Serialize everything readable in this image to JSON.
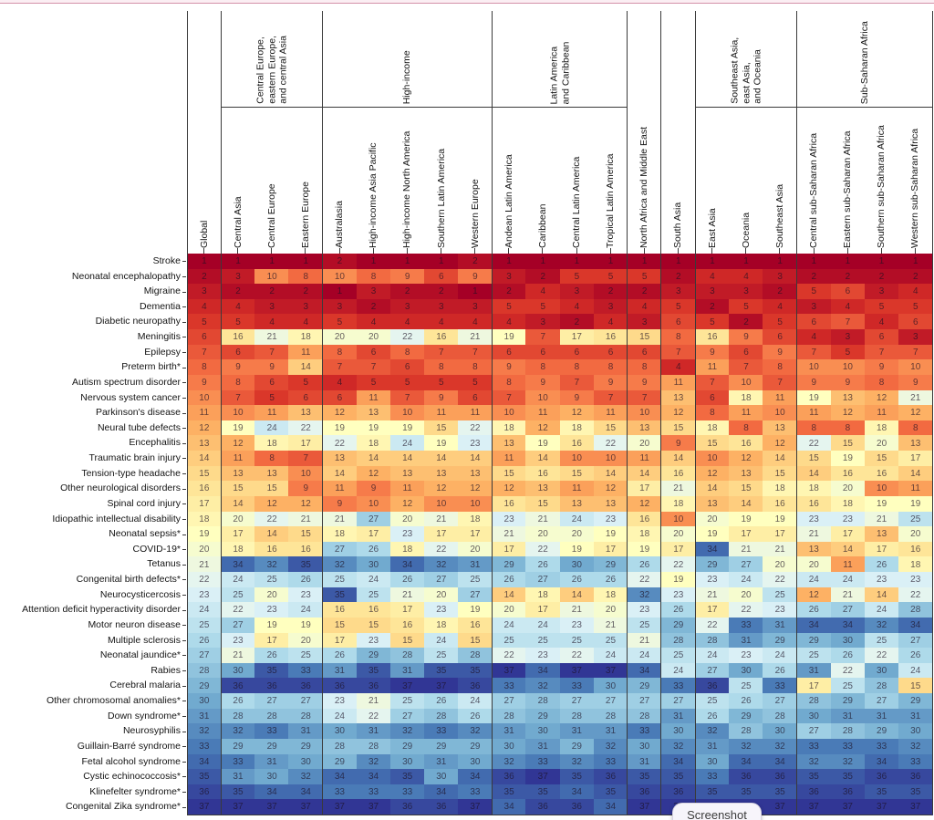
{
  "page": {
    "top_strip_color": "#fbeef3",
    "top_line_color": "#d491a9",
    "background": "#ffffff"
  },
  "screenshot_pill": {
    "label": "Screenshot"
  },
  "chart_data": {
    "type": "heatmap",
    "value_meaning": "rank of disorder within each region (1 = highest burden)",
    "rank_min": 1,
    "rank_max": 37,
    "grid": "off",
    "legend": "none",
    "colormap_anchors": [
      "#a50026",
      "#d73027",
      "#f46d43",
      "#fdae61",
      "#fee090",
      "#ffffbf",
      "#e0f3f8",
      "#abd9e9",
      "#74add1",
      "#4575b4",
      "#313695"
    ],
    "number_color": "rgba(28,16,36,0.68)",
    "column_groups": [
      {
        "label": "Central Europe,\neastern Europe,\nand central Asia",
        "start": 1,
        "end": 4
      },
      {
        "label": "High-income",
        "start": 4,
        "end": 9
      },
      {
        "label": "Latin America\nand Caribbean",
        "start": 9,
        "end": 13
      },
      {
        "label": "Southeast Asia,\neast Asia,\nand Oceania",
        "start": 15,
        "end": 18
      },
      {
        "label": "Sub-Saharan Africa",
        "start": 18,
        "end": 22
      }
    ],
    "separator_columns": [
      0,
      1,
      4,
      9,
      13,
      14,
      15,
      18,
      22
    ],
    "columns": [
      "Global",
      "Central Asia",
      "Central Europe",
      "Eastern Europe",
      "Australasia",
      "High-income Asia Pacific",
      "High-income North America",
      "Southern Latin America",
      "Western Europe",
      "Andean Latin America",
      "Caribbean",
      "Central Latin America",
      "Tropical Latin America",
      "North Africa and Middle East",
      "South Asia",
      "East Asia",
      "Oceania",
      "Southeast Asia",
      "Central sub-Saharan Africa",
      "Eastern sub-Saharan Africa",
      "Southern sub-Saharan Africa",
      "Western sub-Saharan Africa"
    ],
    "rows": [
      {
        "label": "Stroke",
        "values": [
          1,
          1,
          1,
          1,
          2,
          1,
          1,
          1,
          2,
          1,
          1,
          1,
          1,
          1,
          1,
          1,
          1,
          1,
          1,
          1,
          1,
          1
        ]
      },
      {
        "label": "Neonatal encephalopathy",
        "values": [
          2,
          3,
          10,
          8,
          10,
          8,
          9,
          6,
          9,
          3,
          2,
          5,
          5,
          5,
          2,
          4,
          4,
          3,
          2,
          2,
          2,
          2
        ]
      },
      {
        "label": "Migraine",
        "values": [
          3,
          2,
          2,
          2,
          1,
          3,
          2,
          2,
          1,
          2,
          4,
          3,
          2,
          2,
          3,
          3,
          3,
          2,
          5,
          6,
          3,
          4
        ]
      },
      {
        "label": "Dementia",
        "values": [
          4,
          4,
          3,
          3,
          3,
          2,
          3,
          3,
          3,
          5,
          5,
          4,
          3,
          4,
          5,
          2,
          5,
          4,
          3,
          4,
          5,
          5
        ]
      },
      {
        "label": "Diabetic neuropathy",
        "values": [
          5,
          5,
          4,
          4,
          5,
          4,
          4,
          4,
          4,
          4,
          3,
          2,
          4,
          3,
          6,
          5,
          2,
          5,
          6,
          7,
          4,
          6
        ]
      },
      {
        "label": "Meningitis",
        "values": [
          6,
          16,
          21,
          18,
          20,
          20,
          22,
          16,
          21,
          19,
          7,
          17,
          16,
          15,
          8,
          16,
          9,
          6,
          4,
          3,
          6,
          3
        ]
      },
      {
        "label": "Epilepsy",
        "values": [
          7,
          6,
          7,
          11,
          8,
          6,
          8,
          7,
          7,
          6,
          6,
          6,
          6,
          6,
          7,
          9,
          6,
          9,
          7,
          5,
          7,
          7
        ]
      },
      {
        "label": "Preterm birth*",
        "values": [
          8,
          9,
          9,
          14,
          7,
          7,
          6,
          8,
          8,
          9,
          8,
          8,
          8,
          8,
          4,
          11,
          7,
          8,
          10,
          10,
          9,
          10
        ]
      },
      {
        "label": "Autism spectrum disorder",
        "values": [
          9,
          8,
          6,
          5,
          4,
          5,
          5,
          5,
          5,
          8,
          9,
          7,
          9,
          9,
          11,
          7,
          10,
          7,
          9,
          9,
          8,
          9
        ]
      },
      {
        "label": "Nervous system cancer",
        "values": [
          10,
          7,
          5,
          6,
          6,
          11,
          7,
          9,
          6,
          7,
          10,
          9,
          7,
          7,
          13,
          6,
          18,
          11,
          19,
          13,
          12,
          21
        ]
      },
      {
        "label": "Parkinson's disease",
        "values": [
          11,
          10,
          11,
          13,
          12,
          13,
          10,
          11,
          11,
          10,
          11,
          12,
          11,
          10,
          12,
          8,
          11,
          10,
          11,
          12,
          11,
          12
        ]
      },
      {
        "label": "Neural tube defects",
        "values": [
          12,
          19,
          24,
          22,
          19,
          19,
          19,
          15,
          22,
          18,
          12,
          18,
          15,
          13,
          15,
          18,
          8,
          13,
          8,
          8,
          18,
          8
        ]
      },
      {
        "label": "Encephalitis",
        "values": [
          13,
          12,
          18,
          17,
          22,
          18,
          24,
          19,
          23,
          13,
          19,
          16,
          22,
          20,
          9,
          15,
          16,
          12,
          22,
          15,
          20,
          13
        ]
      },
      {
        "label": "Traumatic brain injury",
        "values": [
          14,
          11,
          8,
          7,
          13,
          14,
          14,
          14,
          14,
          11,
          14,
          10,
          10,
          11,
          14,
          10,
          12,
          14,
          15,
          19,
          15,
          17
        ]
      },
      {
        "label": "Tension-type headache",
        "values": [
          15,
          13,
          13,
          10,
          14,
          12,
          13,
          13,
          13,
          15,
          16,
          15,
          14,
          14,
          16,
          12,
          13,
          15,
          14,
          16,
          16,
          14
        ]
      },
      {
        "label": "Other neurological disorders",
        "values": [
          16,
          15,
          15,
          9,
          11,
          9,
          11,
          12,
          12,
          12,
          13,
          11,
          12,
          17,
          21,
          14,
          15,
          18,
          18,
          20,
          10,
          11
        ]
      },
      {
        "label": "Spinal cord injury",
        "values": [
          17,
          14,
          12,
          12,
          9,
          10,
          12,
          10,
          10,
          16,
          15,
          13,
          13,
          12,
          18,
          13,
          14,
          16,
          16,
          18,
          19,
          19
        ]
      },
      {
        "label": "Idiopathic intellectual disability",
        "values": [
          18,
          20,
          22,
          21,
          21,
          27,
          20,
          21,
          18,
          23,
          21,
          24,
          23,
          16,
          10,
          20,
          19,
          19,
          23,
          23,
          21,
          25
        ]
      },
      {
        "label": "Neonatal sepsis*",
        "values": [
          19,
          17,
          14,
          15,
          18,
          17,
          23,
          17,
          17,
          21,
          20,
          20,
          19,
          18,
          20,
          19,
          17,
          17,
          21,
          17,
          13,
          20
        ]
      },
      {
        "label": "COVID-19*",
        "values": [
          20,
          18,
          16,
          16,
          27,
          26,
          18,
          22,
          20,
          17,
          22,
          19,
          17,
          19,
          17,
          34,
          21,
          21,
          13,
          14,
          17,
          16
        ]
      },
      {
        "label": "Tetanus",
        "values": [
          21,
          34,
          32,
          35,
          32,
          30,
          34,
          32,
          31,
          29,
          26,
          30,
          29,
          26,
          22,
          29,
          27,
          20,
          20,
          11,
          26,
          18
        ]
      },
      {
        "label": "Congenital birth defects*",
        "values": [
          22,
          24,
          25,
          26,
          25,
          24,
          26,
          27,
          25,
          26,
          27,
          26,
          26,
          22,
          19,
          23,
          24,
          22,
          24,
          24,
          23,
          23
        ]
      },
      {
        "label": "Neurocysticercosis",
        "values": [
          23,
          25,
          20,
          23,
          35,
          25,
          21,
          20,
          27,
          14,
          18,
          14,
          18,
          32,
          23,
          21,
          20,
          25,
          12,
          21,
          14,
          22
        ]
      },
      {
        "label": "Attention deficit hyperactivity disorder",
        "values": [
          24,
          22,
          23,
          24,
          16,
          16,
          17,
          23,
          19,
          20,
          17,
          21,
          20,
          23,
          26,
          17,
          22,
          23,
          26,
          27,
          24,
          28
        ]
      },
      {
        "label": "Motor neuron disease",
        "values": [
          25,
          27,
          19,
          19,
          15,
          15,
          16,
          18,
          16,
          24,
          24,
          23,
          21,
          25,
          29,
          22,
          33,
          31,
          34,
          34,
          32,
          34
        ]
      },
      {
        "label": "Multiple sclerosis",
        "values": [
          26,
          23,
          17,
          20,
          17,
          23,
          15,
          24,
          15,
          25,
          25,
          25,
          25,
          21,
          28,
          28,
          31,
          29,
          29,
          30,
          25,
          27
        ]
      },
      {
        "label": "Neonatal jaundice*",
        "values": [
          27,
          21,
          26,
          25,
          26,
          29,
          28,
          25,
          28,
          22,
          23,
          22,
          24,
          24,
          25,
          24,
          23,
          24,
          25,
          26,
          22,
          26
        ]
      },
      {
        "label": "Rabies",
        "values": [
          28,
          30,
          35,
          33,
          31,
          35,
          31,
          35,
          35,
          37,
          34,
          37,
          37,
          34,
          24,
          27,
          30,
          26,
          31,
          22,
          30,
          24
        ]
      },
      {
        "label": "Cerebral malaria",
        "values": [
          29,
          36,
          36,
          36,
          36,
          36,
          37,
          37,
          36,
          33,
          32,
          33,
          30,
          29,
          33,
          36,
          25,
          33,
          17,
          25,
          28,
          15
        ]
      },
      {
        "label": "Other chromosomal anomalies*",
        "values": [
          30,
          26,
          27,
          27,
          23,
          21,
          25,
          26,
          24,
          27,
          28,
          27,
          27,
          27,
          27,
          25,
          26,
          27,
          28,
          29,
          27,
          29
        ]
      },
      {
        "label": "Down syndrome*",
        "values": [
          31,
          28,
          28,
          28,
          24,
          22,
          27,
          28,
          26,
          28,
          29,
          28,
          28,
          28,
          31,
          26,
          29,
          28,
          30,
          31,
          31,
          31
        ]
      },
      {
        "label": "Neurosyphilis",
        "values": [
          32,
          32,
          33,
          31,
          30,
          31,
          32,
          33,
          32,
          31,
          30,
          31,
          31,
          33,
          30,
          32,
          28,
          30,
          27,
          28,
          29,
          30
        ]
      },
      {
        "label": "Guillain-Barré syndrome",
        "values": [
          33,
          29,
          29,
          29,
          28,
          28,
          29,
          29,
          29,
          30,
          31,
          29,
          32,
          30,
          32,
          31,
          32,
          32,
          33,
          33,
          33,
          32
        ]
      },
      {
        "label": "Fetal alcohol syndrome",
        "values": [
          34,
          33,
          31,
          30,
          29,
          32,
          30,
          31,
          30,
          32,
          33,
          32,
          33,
          31,
          34,
          30,
          34,
          34,
          32,
          32,
          34,
          33
        ]
      },
      {
        "label": "Cystic echinococcosis*",
        "values": [
          35,
          31,
          30,
          32,
          34,
          34,
          35,
          30,
          34,
          36,
          37,
          35,
          36,
          35,
          35,
          33,
          36,
          36,
          35,
          35,
          36,
          36
        ]
      },
      {
        "label": "Klinefelter syndrome*",
        "values": [
          36,
          35,
          34,
          34,
          33,
          33,
          33,
          34,
          33,
          35,
          35,
          34,
          35,
          36,
          36,
          35,
          35,
          35,
          36,
          36,
          35,
          35
        ]
      },
      {
        "label": "Congenital Zika syndrome*",
        "values": [
          37,
          37,
          37,
          37,
          37,
          37,
          36,
          36,
          37,
          34,
          36,
          36,
          34,
          37,
          37,
          37,
          37,
          37,
          37,
          37,
          37,
          37
        ]
      }
    ]
  }
}
